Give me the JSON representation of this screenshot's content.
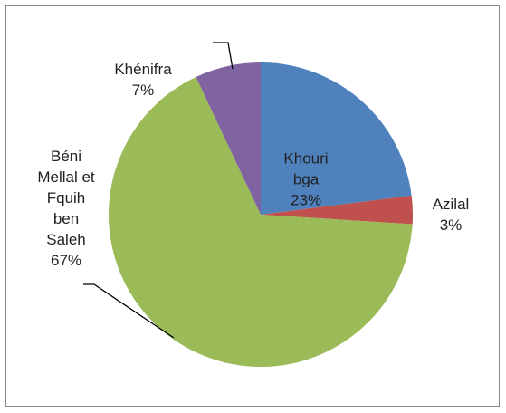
{
  "chart_data": {
    "type": "pie",
    "categories": [
      "Khouribga",
      "Azilal",
      "Béni Mellal et Fquih ben Saleh",
      "Khénifra"
    ],
    "values": [
      23,
      3,
      67,
      7
    ],
    "value_labels": [
      "23%",
      "3%",
      "67%",
      "7%"
    ],
    "colors": [
      "#4f81bd",
      "#c0504d",
      "#9bbb59",
      "#8064a2"
    ]
  }
}
